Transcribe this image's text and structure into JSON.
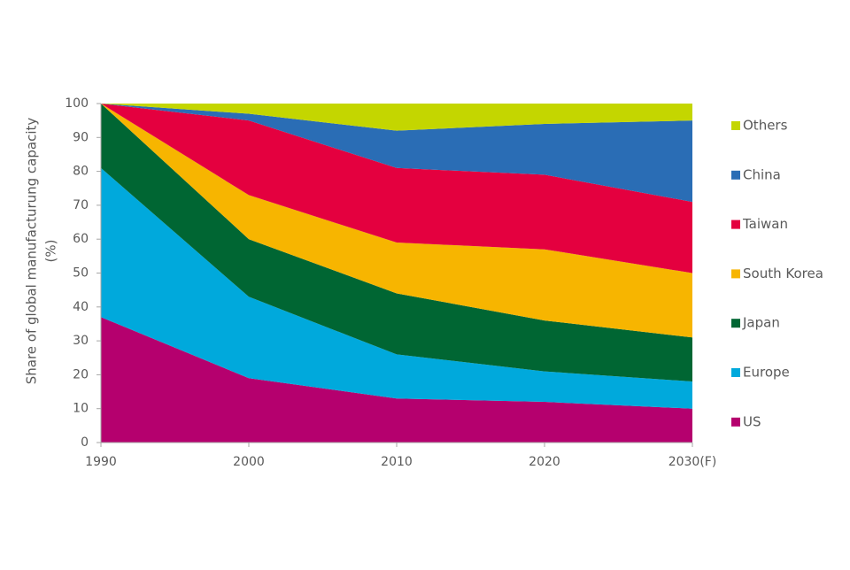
{
  "chart_data": {
    "type": "stacked_area",
    "y_label": [
      "Share of global manufacturung capacity",
      "(%)"
    ],
    "categories": [
      "1990",
      "2000",
      "2010",
      "2020",
      "2030(F)"
    ],
    "ylim": [
      0,
      100
    ],
    "yticks": [
      0,
      10,
      20,
      30,
      40,
      50,
      60,
      70,
      80,
      90,
      100
    ],
    "series": [
      {
        "name": "US",
        "color": "#b5006e",
        "values": [
          37,
          19,
          13,
          12,
          10
        ]
      },
      {
        "name": "Europe",
        "color": "#00a9dc",
        "values": [
          44,
          24,
          13,
          9,
          8
        ]
      },
      {
        "name": "Japan",
        "color": "#006633",
        "values": [
          19,
          17,
          18,
          15,
          13
        ]
      },
      {
        "name": "South Korea",
        "color": "#f7b500",
        "values": [
          0,
          13,
          15,
          21,
          19
        ]
      },
      {
        "name": "Taiwan",
        "color": "#e4003f",
        "values": [
          0,
          22,
          22,
          22,
          21
        ]
      },
      {
        "name": "China",
        "color": "#2a6db5",
        "values": [
          0,
          2,
          11,
          15,
          24
        ]
      },
      {
        "name": "Others",
        "color": "#c4d600",
        "values": [
          0,
          3,
          8,
          6,
          5
        ]
      }
    ],
    "legend": "right"
  }
}
